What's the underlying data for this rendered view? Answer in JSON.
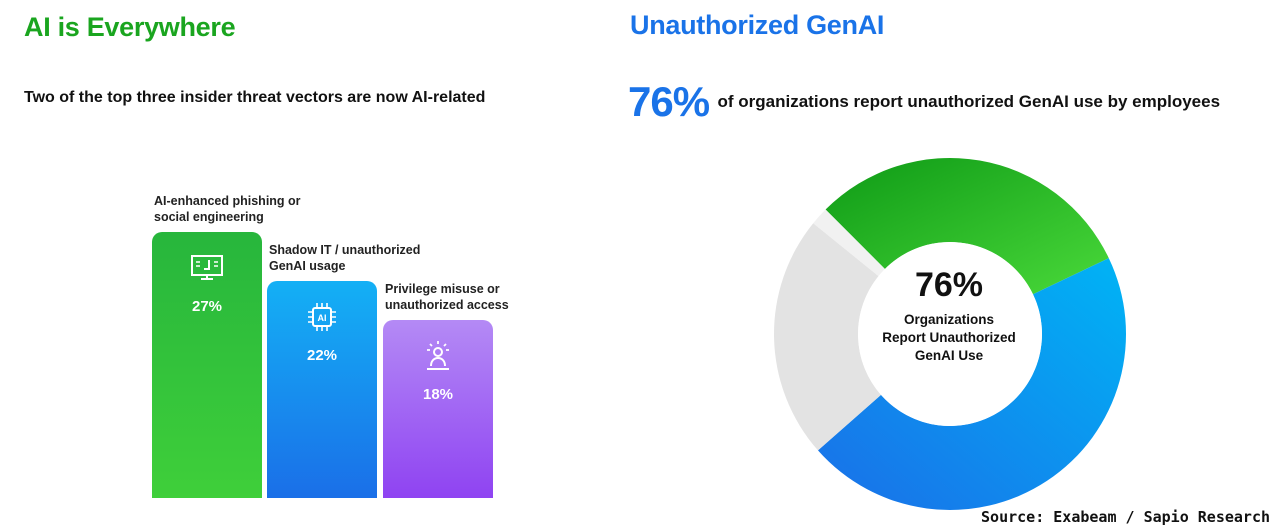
{
  "left": {
    "title": "AI is Everywhere",
    "subtitle": "Two of the top three insider threat vectors are now AI-related"
  },
  "right": {
    "title": "Unauthorized GenAI",
    "stat_value": "76%",
    "stat_text": "of organizations report unauthorized GenAI use by employees",
    "center_value": "76%",
    "center_label": [
      "Organizations",
      "Report Unauthorized",
      "GenAI Use"
    ]
  },
  "source": "Source: Exabeam / Sapio Research",
  "colors": {
    "green": "#1aa51f",
    "blue": "#1a73e8",
    "cyan": "#00aef0",
    "purple": "#a46cf0",
    "gray": "#e3e3e3"
  },
  "chart_data": [
    {
      "type": "bar",
      "title": "Two of the top three insider threat vectors are now AI-related",
      "categories": [
        [
          "AI-enhanced phishing or",
          "social engineering"
        ],
        [
          "Shadow IT / unauthorized",
          "GenAI usage"
        ],
        [
          "Privilege misuse or",
          "unauthorized access"
        ]
      ],
      "values": [
        27,
        22,
        18
      ],
      "value_labels": [
        "27%",
        "22%",
        "18%"
      ],
      "icons": [
        "monitor-code-icon",
        "ai-chip-icon",
        "user-alert-icon"
      ],
      "ylim": [
        0,
        30
      ]
    },
    {
      "type": "pie",
      "donut": true,
      "slices": [
        {
          "label": "Organizations Report Unauthorized GenAI Use",
          "value": 76
        },
        {
          "label": "",
          "value": 24
        }
      ]
    }
  ]
}
